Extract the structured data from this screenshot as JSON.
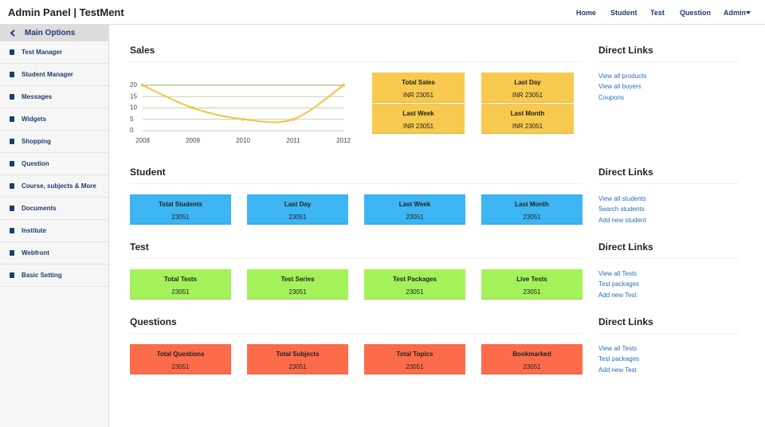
{
  "navbar": {
    "brand": "Admin Panel | TestMent",
    "links": [
      "Home",
      "Student",
      "Test",
      "Question"
    ],
    "user": "Admin"
  },
  "sidebar": {
    "header": "Main Options",
    "items": [
      "Test Manager",
      "Student Manager",
      "Messages",
      "Widgets",
      "Shopping",
      "Question",
      "Course, subjects & More",
      "Documents",
      "Institute",
      "Webfront",
      "Basic Setting"
    ]
  },
  "sections": [
    {
      "title": "Sales",
      "chart": {
        "type": "line",
        "categories": [
          "2008",
          "2009",
          "2010",
          "2011",
          "2012"
        ],
        "series": [
          {
            "color": "#f5c542",
            "values": [
              20,
              10,
              5,
              5,
              20
            ]
          }
        ],
        "ylim": [
          0,
          20
        ],
        "yticks": [
          0,
          5,
          10,
          15,
          20
        ],
        "grid": true
      },
      "cards": [
        {
          "label": "Total Sales",
          "value": "INR 23051"
        },
        {
          "label": "Last Day",
          "value": "INR 23051"
        },
        {
          "label": "Last Week",
          "value": "INR 23051"
        },
        {
          "label": "Last Month",
          "value": "INR 23051"
        }
      ],
      "card_color": "#f7c94e",
      "links_title": "Direct Links",
      "links": [
        "View all products",
        "View all buyers",
        "Coupons"
      ]
    },
    {
      "title": "Student",
      "cards": [
        {
          "label": "Total Students",
          "value": "23051"
        },
        {
          "label": "Last Day",
          "value": "23051"
        },
        {
          "label": "Last Week",
          "value": "23051"
        },
        {
          "label": "Last Month",
          "value": "23051"
        }
      ],
      "card_color": "#3db5f2",
      "links_title": "Direct Links",
      "links": [
        "View all students",
        "Search students",
        "Add new student"
      ]
    },
    {
      "title": "Test",
      "cards": [
        {
          "label": "Total Tests",
          "value": "23051"
        },
        {
          "label": "Test Series",
          "value": "23051"
        },
        {
          "label": "Test Packages",
          "value": "23051"
        },
        {
          "label": "Live Tests",
          "value": "23051"
        }
      ],
      "card_color": "#a3f25a",
      "links_title": "Direct Links",
      "links": [
        "View all Tests",
        "Test packages",
        "Add new Test"
      ]
    },
    {
      "title": "Questions",
      "cards": [
        {
          "label": "Total Questions",
          "value": "23051"
        },
        {
          "label": "Total Subjects",
          "value": "23051"
        },
        {
          "label": "Total Topics",
          "value": "23051"
        },
        {
          "label": "Bookmarked",
          "value": "23051"
        }
      ],
      "card_color": "#fc6c4b",
      "links_title": "Direct Links",
      "links": [
        "View all Tests",
        "Test packages",
        "Add new Test"
      ]
    }
  ]
}
